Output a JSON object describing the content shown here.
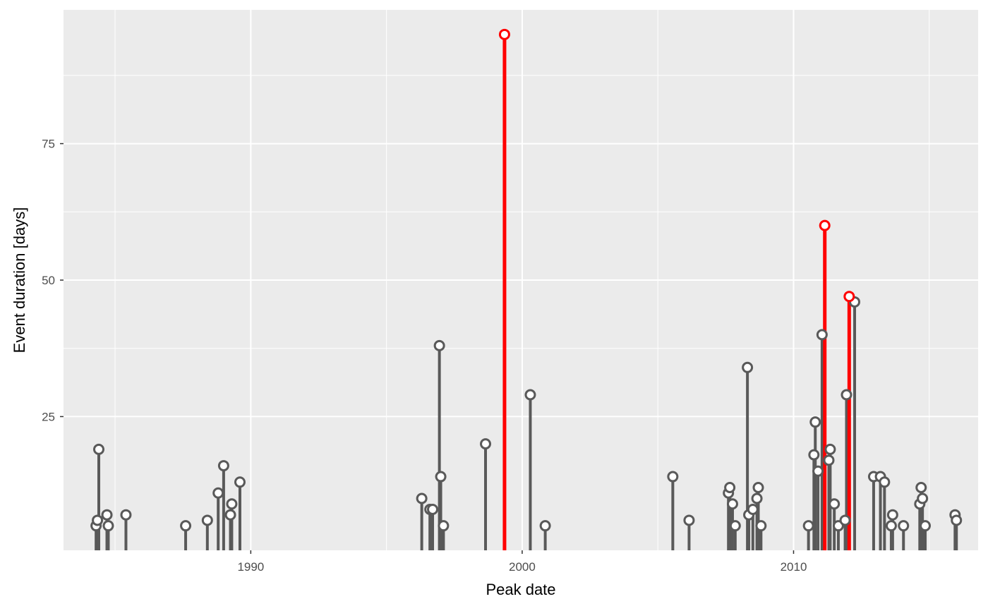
{
  "chart_data": {
    "type": "lollipop",
    "xlabel": "Peak date",
    "ylabel": "Event duration [days]",
    "x_unit": "year",
    "xlim": [
      1983.1,
      2016.8
    ],
    "ylim": [
      0.5,
      99.5
    ],
    "x_ticks": [
      1990,
      2000,
      2010
    ],
    "y_ticks": [
      25,
      50,
      75
    ],
    "x_tick_labels": [
      "1990",
      "2000",
      "2010"
    ],
    "y_tick_labels": [
      "25",
      "50",
      "75"
    ],
    "grid": true,
    "legend": "none",
    "colors": {
      "panel_bg": "#ebebeb",
      "grid": "#ffffff",
      "stem": "#595959",
      "highlight": "#ff0000",
      "point_fill": "#ffffff",
      "tick_text": "#4d4d4d",
      "title_text": "#000000"
    },
    "series": [
      {
        "values": [
          {
            "x": 1984.3,
            "y": 5
          },
          {
            "x": 1984.35,
            "y": 6
          },
          {
            "x": 1984.4,
            "y": 19
          },
          {
            "x": 1984.7,
            "y": 7
          },
          {
            "x": 1984.75,
            "y": 5
          },
          {
            "x": 1985.4,
            "y": 7
          },
          {
            "x": 1987.6,
            "y": 5
          },
          {
            "x": 1988.4,
            "y": 6
          },
          {
            "x": 1988.8,
            "y": 11
          },
          {
            "x": 1989.0,
            "y": 16
          },
          {
            "x": 1989.25,
            "y": 7
          },
          {
            "x": 1989.3,
            "y": 9
          },
          {
            "x": 1989.6,
            "y": 13
          },
          {
            "x": 1996.3,
            "y": 10
          },
          {
            "x": 1996.6,
            "y": 8
          },
          {
            "x": 1996.7,
            "y": 8
          },
          {
            "x": 1996.95,
            "y": 38
          },
          {
            "x": 1997.0,
            "y": 14
          },
          {
            "x": 1997.1,
            "y": 5
          },
          {
            "x": 1998.65,
            "y": 20
          },
          {
            "x": 2000.3,
            "y": 29
          },
          {
            "x": 2000.85,
            "y": 5
          },
          {
            "x": 2005.55,
            "y": 14
          },
          {
            "x": 2006.15,
            "y": 6
          },
          {
            "x": 2007.6,
            "y": 11
          },
          {
            "x": 2007.65,
            "y": 12
          },
          {
            "x": 2007.75,
            "y": 9
          },
          {
            "x": 2007.85,
            "y": 5
          },
          {
            "x": 2008.3,
            "y": 34
          },
          {
            "x": 2008.35,
            "y": 7
          },
          {
            "x": 2008.5,
            "y": 8
          },
          {
            "x": 2008.65,
            "y": 10
          },
          {
            "x": 2008.7,
            "y": 12
          },
          {
            "x": 2008.8,
            "y": 5
          },
          {
            "x": 2010.55,
            "y": 5
          },
          {
            "x": 2010.75,
            "y": 18
          },
          {
            "x": 2010.8,
            "y": 24
          },
          {
            "x": 2010.9,
            "y": 15
          },
          {
            "x": 2011.05,
            "y": 40
          },
          {
            "x": 2011.3,
            "y": 17
          },
          {
            "x": 2011.35,
            "y": 19
          },
          {
            "x": 2011.5,
            "y": 9
          },
          {
            "x": 2011.65,
            "y": 5
          },
          {
            "x": 2011.9,
            "y": 6
          },
          {
            "x": 2011.95,
            "y": 29
          },
          {
            "x": 2012.25,
            "y": 46
          },
          {
            "x": 2012.95,
            "y": 14
          },
          {
            "x": 2013.2,
            "y": 14
          },
          {
            "x": 2013.35,
            "y": 13
          },
          {
            "x": 2013.6,
            "y": 5
          },
          {
            "x": 2013.65,
            "y": 7
          },
          {
            "x": 2014.05,
            "y": 5
          },
          {
            "x": 2014.65,
            "y": 9
          },
          {
            "x": 2014.7,
            "y": 12
          },
          {
            "x": 2014.75,
            "y": 10
          },
          {
            "x": 2014.85,
            "y": 5
          },
          {
            "x": 2015.95,
            "y": 7
          },
          {
            "x": 2016.0,
            "y": 6
          }
        ]
      },
      {
        "highlight": true,
        "values": [
          {
            "x": 1999.35,
            "y": 95
          },
          {
            "x": 2011.15,
            "y": 60
          },
          {
            "x": 2012.05,
            "y": 47
          }
        ]
      }
    ]
  }
}
